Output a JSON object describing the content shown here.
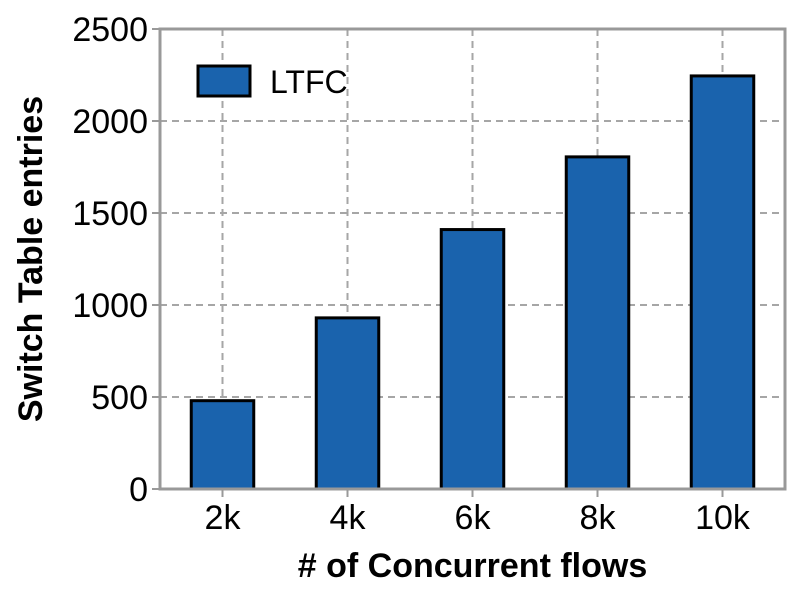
{
  "chart_data": {
    "type": "bar",
    "categories": [
      "2k",
      "4k",
      "6k",
      "8k",
      "10k"
    ],
    "series": [
      {
        "name": "LTFC",
        "values": [
          480,
          930,
          1410,
          1805,
          2245
        ],
        "color": "#1a63ad"
      }
    ],
    "xlabel": "# of Concurrent flows",
    "ylabel": "Switch Table entries",
    "ylim": [
      0,
      2500
    ],
    "yticks": [
      0,
      500,
      1000,
      1500,
      2000,
      2500
    ],
    "grid": true,
    "legend_position": "top-left"
  }
}
